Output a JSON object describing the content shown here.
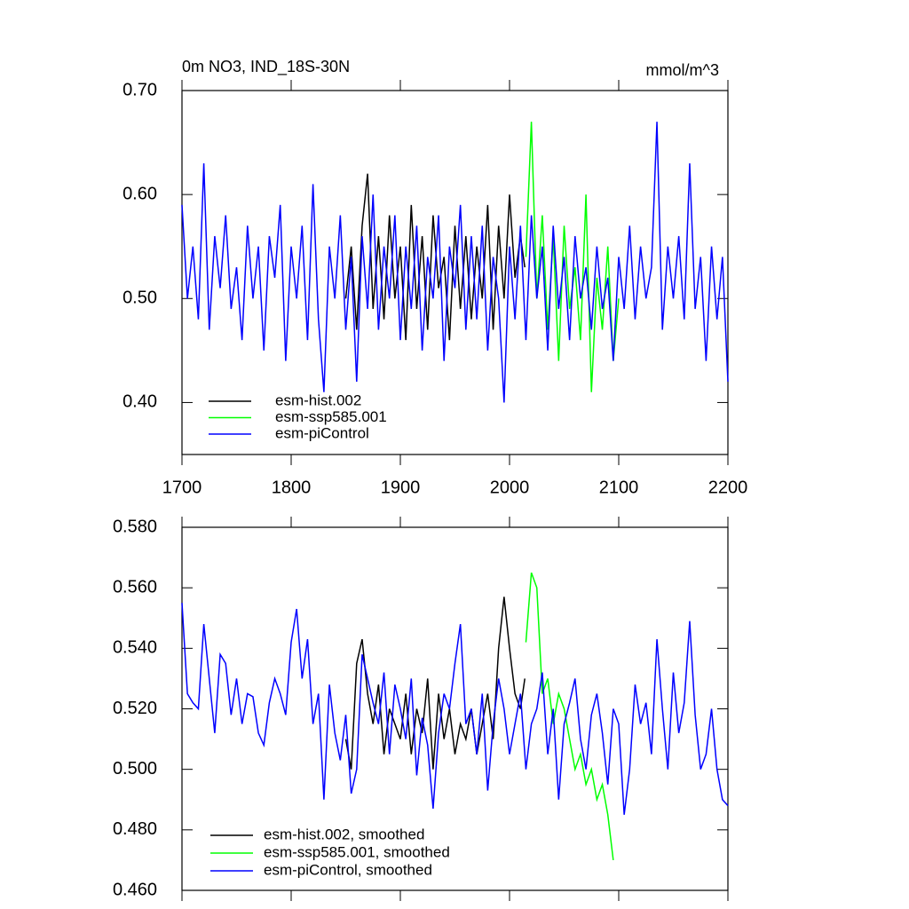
{
  "chart_data": [
    {
      "type": "line",
      "title": "0m NO3, IND_18S-30N",
      "units_label": "mmol/m^3",
      "xlim": [
        1700,
        2200
      ],
      "xticks": [
        1700,
        1800,
        1900,
        2000,
        2100,
        2200
      ],
      "xtick_labels": true,
      "ylim": [
        0.35,
        0.7
      ],
      "yticks": [
        {
          "value": 0.4,
          "label": "0.40"
        },
        {
          "value": 0.5,
          "label": "0.50"
        },
        {
          "value": 0.6,
          "label": "0.60"
        },
        {
          "value": 0.7,
          "label": "0.70"
        }
      ],
      "legend": "lower left",
      "series": [
        {
          "name": "esm-hist.002",
          "color": "#000000",
          "x": [
            1850,
            1855,
            1860,
            1865,
            1870,
            1875,
            1880,
            1885,
            1890,
            1895,
            1900,
            1905,
            1910,
            1915,
            1920,
            1925,
            1930,
            1935,
            1940,
            1945,
            1950,
            1955,
            1960,
            1965,
            1970,
            1975,
            1980,
            1985,
            1990,
            1995,
            2000,
            2005,
            2010,
            2014
          ],
          "values": [
            0.5,
            0.55,
            0.47,
            0.57,
            0.62,
            0.49,
            0.56,
            0.48,
            0.58,
            0.5,
            0.55,
            0.46,
            0.59,
            0.49,
            0.56,
            0.47,
            0.58,
            0.51,
            0.54,
            0.46,
            0.57,
            0.49,
            0.56,
            0.48,
            0.55,
            0.5,
            0.59,
            0.47,
            0.57,
            0.5,
            0.6,
            0.52,
            0.56,
            0.53
          ]
        },
        {
          "name": "esm-ssp585.001",
          "color": "#00ff00",
          "x": [
            2015,
            2020,
            2025,
            2030,
            2035,
            2040,
            2045,
            2050,
            2055,
            2060,
            2065,
            2070,
            2075,
            2080,
            2085,
            2090,
            2095,
            2100
          ],
          "values": [
            0.54,
            0.67,
            0.5,
            0.58,
            0.47,
            0.56,
            0.44,
            0.57,
            0.49,
            0.53,
            0.46,
            0.6,
            0.41,
            0.52,
            0.47,
            0.55,
            0.44,
            0.5
          ]
        },
        {
          "name": "esm-piControl",
          "color": "#0000ff",
          "x": [
            1700,
            1705,
            1710,
            1715,
            1720,
            1725,
            1730,
            1735,
            1740,
            1745,
            1750,
            1755,
            1760,
            1765,
            1770,
            1775,
            1780,
            1785,
            1790,
            1795,
            1800,
            1805,
            1810,
            1815,
            1820,
            1825,
            1830,
            1835,
            1840,
            1845,
            1850,
            1855,
            1860,
            1865,
            1870,
            1875,
            1880,
            1885,
            1890,
            1895,
            1900,
            1905,
            1910,
            1915,
            1920,
            1925,
            1930,
            1935,
            1940,
            1945,
            1950,
            1955,
            1960,
            1965,
            1970,
            1975,
            1980,
            1985,
            1990,
            1995,
            2000,
            2005,
            2010,
            2015,
            2020,
            2025,
            2030,
            2035,
            2040,
            2045,
            2050,
            2055,
            2060,
            2065,
            2070,
            2075,
            2080,
            2085,
            2090,
            2095,
            2100,
            2105,
            2110,
            2115,
            2120,
            2125,
            2130,
            2135,
            2140,
            2145,
            2150,
            2155,
            2160,
            2165,
            2170,
            2175,
            2180,
            2185,
            2190,
            2195,
            2200
          ],
          "values": [
            0.59,
            0.5,
            0.55,
            0.48,
            0.63,
            0.47,
            0.56,
            0.51,
            0.58,
            0.49,
            0.53,
            0.46,
            0.57,
            0.5,
            0.55,
            0.45,
            0.56,
            0.52,
            0.59,
            0.44,
            0.55,
            0.5,
            0.57,
            0.46,
            0.61,
            0.48,
            0.41,
            0.55,
            0.5,
            0.58,
            0.47,
            0.54,
            0.42,
            0.56,
            0.49,
            0.6,
            0.47,
            0.55,
            0.5,
            0.58,
            0.46,
            0.55,
            0.49,
            0.57,
            0.45,
            0.54,
            0.5,
            0.58,
            0.44,
            0.55,
            0.51,
            0.59,
            0.47,
            0.56,
            0.48,
            0.57,
            0.45,
            0.54,
            0.5,
            0.4,
            0.55,
            0.48,
            0.57,
            0.46,
            0.58,
            0.5,
            0.55,
            0.45,
            0.57,
            0.49,
            0.54,
            0.46,
            0.56,
            0.5,
            0.53,
            0.47,
            0.55,
            0.49,
            0.52,
            0.44,
            0.54,
            0.49,
            0.57,
            0.48,
            0.55,
            0.5,
            0.53,
            0.67,
            0.47,
            0.55,
            0.5,
            0.56,
            0.48,
            0.63,
            0.49,
            0.54,
            0.44,
            0.55,
            0.48,
            0.54,
            0.42
          ]
        }
      ]
    },
    {
      "type": "line",
      "xlim": [
        1700,
        2200
      ],
      "xticks": [
        1700,
        1800,
        1900,
        2000,
        2100,
        2200
      ],
      "xtick_labels": false,
      "ylim": [
        0.46,
        0.58
      ],
      "yticks": [
        {
          "value": 0.46,
          "label": "0.460"
        },
        {
          "value": 0.48,
          "label": "0.480"
        },
        {
          "value": 0.5,
          "label": "0.500"
        },
        {
          "value": 0.52,
          "label": "0.520"
        },
        {
          "value": 0.54,
          "label": "0.540"
        },
        {
          "value": 0.56,
          "label": "0.560"
        },
        {
          "value": 0.58,
          "label": "0.580"
        }
      ],
      "legend": "lower left",
      "series": [
        {
          "name": "esm-hist.002, smoothed",
          "color": "#000000",
          "x": [
            1850,
            1855,
            1860,
            1865,
            1870,
            1875,
            1880,
            1885,
            1890,
            1895,
            1900,
            1905,
            1910,
            1915,
            1920,
            1925,
            1930,
            1935,
            1940,
            1945,
            1950,
            1955,
            1960,
            1965,
            1970,
            1975,
            1980,
            1985,
            1990,
            1995,
            2000,
            2005,
            2010,
            2014
          ],
          "values": [
            0.51,
            0.5,
            0.535,
            0.543,
            0.525,
            0.515,
            0.528,
            0.505,
            0.52,
            0.515,
            0.51,
            0.525,
            0.505,
            0.52,
            0.512,
            0.53,
            0.5,
            0.525,
            0.51,
            0.52,
            0.505,
            0.515,
            0.51,
            0.52,
            0.505,
            0.515,
            0.525,
            0.51,
            0.54,
            0.557,
            0.54,
            0.525,
            0.52,
            0.53
          ]
        },
        {
          "name": "esm-ssp585.001, smoothed",
          "color": "#00ff00",
          "x": [
            2015,
            2020,
            2025,
            2030,
            2035,
            2040,
            2045,
            2050,
            2055,
            2060,
            2065,
            2070,
            2075,
            2080,
            2085,
            2090,
            2095
          ],
          "values": [
            0.542,
            0.565,
            0.56,
            0.525,
            0.53,
            0.515,
            0.525,
            0.52,
            0.51,
            0.5,
            0.505,
            0.495,
            0.5,
            0.49,
            0.495,
            0.485,
            0.47
          ]
        },
        {
          "name": "esm-piControl, smoothed",
          "color": "#0000ff",
          "x": [
            1700,
            1705,
            1710,
            1715,
            1720,
            1725,
            1730,
            1735,
            1740,
            1745,
            1750,
            1755,
            1760,
            1765,
            1770,
            1775,
            1780,
            1785,
            1790,
            1795,
            1800,
            1805,
            1810,
            1815,
            1820,
            1825,
            1830,
            1835,
            1840,
            1845,
            1850,
            1855,
            1860,
            1865,
            1870,
            1875,
            1880,
            1885,
            1890,
            1895,
            1900,
            1905,
            1910,
            1915,
            1920,
            1925,
            1930,
            1935,
            1940,
            1945,
            1950,
            1955,
            1960,
            1965,
            1970,
            1975,
            1980,
            1985,
            1990,
            1995,
            2000,
            2005,
            2010,
            2015,
            2020,
            2025,
            2030,
            2035,
            2040,
            2045,
            2050,
            2055,
            2060,
            2065,
            2070,
            2075,
            2080,
            2085,
            2090,
            2095,
            2100,
            2105,
            2110,
            2115,
            2120,
            2125,
            2130,
            2135,
            2140,
            2145,
            2150,
            2155,
            2160,
            2165,
            2170,
            2175,
            2180,
            2185,
            2190,
            2195,
            2200
          ],
          "values": [
            0.555,
            0.525,
            0.522,
            0.52,
            0.548,
            0.53,
            0.512,
            0.538,
            0.535,
            0.518,
            0.53,
            0.515,
            0.525,
            0.524,
            0.512,
            0.508,
            0.522,
            0.53,
            0.525,
            0.518,
            0.542,
            0.553,
            0.53,
            0.543,
            0.515,
            0.525,
            0.49,
            0.528,
            0.512,
            0.503,
            0.518,
            0.492,
            0.5,
            0.538,
            0.53,
            0.522,
            0.515,
            0.532,
            0.505,
            0.528,
            0.52,
            0.51,
            0.53,
            0.498,
            0.517,
            0.508,
            0.487,
            0.512,
            0.525,
            0.52,
            0.535,
            0.548,
            0.515,
            0.52,
            0.505,
            0.525,
            0.493,
            0.515,
            0.53,
            0.52,
            0.505,
            0.515,
            0.525,
            0.5,
            0.515,
            0.52,
            0.532,
            0.505,
            0.52,
            0.49,
            0.515,
            0.522,
            0.53,
            0.51,
            0.5,
            0.518,
            0.525,
            0.512,
            0.495,
            0.52,
            0.515,
            0.485,
            0.5,
            0.528,
            0.515,
            0.522,
            0.505,
            0.543,
            0.52,
            0.5,
            0.532,
            0.512,
            0.522,
            0.549,
            0.518,
            0.5,
            0.505,
            0.52,
            0.5,
            0.49,
            0.488
          ]
        }
      ]
    }
  ]
}
